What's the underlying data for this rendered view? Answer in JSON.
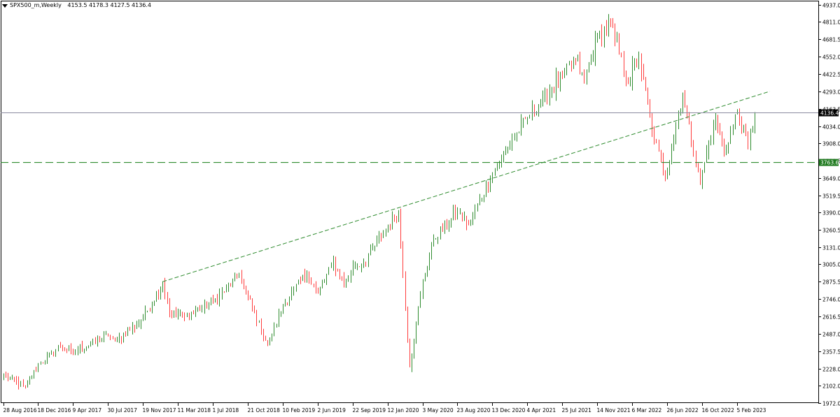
{
  "header": {
    "symbol": "SPX500_m,Weekly",
    "ohlc": "4153.5 4178.3 4127.5 4136.4"
  },
  "colors": {
    "bull": "#2e8b2e",
    "bear": "#ff3b3b",
    "trendline": "#2e8b2e",
    "price_line": "#8a8aa0",
    "axis": "#000000",
    "level_label_bg": "#1f7a1f"
  },
  "chart_data": {
    "type": "candlestick",
    "timeframe": "Weekly",
    "ylim": [
      1972.0,
      4937.0
    ],
    "y_ticks": [
      "4937.0",
      "4811.0",
      "4681.5",
      "4552.0",
      "4422.5",
      "4293.0",
      "4163.5",
      "4034.0",
      "3908.0",
      "3778.5",
      "3649.0",
      "3519.5",
      "3390.0",
      "3260.5",
      "3131.0",
      "3005.0",
      "2875.5",
      "2746.0",
      "2616.5",
      "2487.0",
      "2357.5",
      "2228.0",
      "2102.0",
      "1972.0"
    ],
    "x_ticks": [
      "28 Aug 2016",
      "18 Dec 2016",
      "9 Apr 2017",
      "30 Jul 2017",
      "19 Nov 2017",
      "11 Mar 2018",
      "1 Jul 2018",
      "21 Oct 2018",
      "10 Feb 2019",
      "2 Jun 2019",
      "22 Sep 2019",
      "12 Jan 2020",
      "3 May 2020",
      "23 Aug 2020",
      "13 Dec 2020",
      "4 Apr 2021",
      "25 Jul 2021",
      "14 Nov 2021",
      "6 Mar 2022",
      "26 Jun 2022",
      "16 Oct 2022",
      "5 Feb 2023"
    ],
    "x_start": "2016-08-28",
    "bars_per_tick": 16,
    "current_price": "4136.4",
    "horizontal_level": "3763.6",
    "anchors": [
      [
        "2016-08-28",
        2180
      ],
      [
        "2016-11-06",
        2085
      ],
      [
        "2016-12-18",
        2260
      ],
      [
        "2017-03-01",
        2390
      ],
      [
        "2017-04-09",
        2345
      ],
      [
        "2017-07-30",
        2475
      ],
      [
        "2017-08-20",
        2430
      ],
      [
        "2017-11-19",
        2600
      ],
      [
        "2018-01-21",
        2870
      ],
      [
        "2018-02-11",
        2640
      ],
      [
        "2018-04-01",
        2620
      ],
      [
        "2018-07-01",
        2720
      ],
      [
        "2018-09-20",
        2930
      ],
      [
        "2018-10-21",
        2760
      ],
      [
        "2018-12-23",
        2400
      ],
      [
        "2019-02-10",
        2700
      ],
      [
        "2019-04-28",
        2940
      ],
      [
        "2019-06-02",
        2790
      ],
      [
        "2019-07-21",
        3020
      ],
      [
        "2019-08-25",
        2850
      ],
      [
        "2019-09-22",
        2980
      ],
      [
        "2019-10-27",
        3020
      ],
      [
        "2020-01-12",
        3290
      ],
      [
        "2020-02-16",
        3390
      ],
      [
        "2020-03-22",
        2240
      ],
      [
        "2020-05-03",
        2880
      ],
      [
        "2020-06-07",
        3190
      ],
      [
        "2020-08-23",
        3390
      ],
      [
        "2020-09-27",
        3300
      ],
      [
        "2020-12-13",
        3680
      ],
      [
        "2021-02-14",
        3930
      ],
      [
        "2021-04-04",
        4100
      ],
      [
        "2021-07-25",
        4400
      ],
      [
        "2021-09-05",
        4530
      ],
      [
        "2021-10-03",
        4360
      ],
      [
        "2021-11-14",
        4700
      ],
      [
        "2021-12-26",
        4780
      ],
      [
        "2022-01-09",
        4700
      ],
      [
        "2022-02-20",
        4350
      ],
      [
        "2022-03-27",
        4550
      ],
      [
        "2022-05-08",
        4000
      ],
      [
        "2022-06-19",
        3650
      ],
      [
        "2022-08-14",
        4280
      ],
      [
        "2022-10-09",
        3600
      ],
      [
        "2022-10-16",
        3700
      ],
      [
        "2022-11-27",
        4080
      ],
      [
        "2022-12-25",
        3840
      ],
      [
        "2023-02-05",
        4140
      ],
      [
        "2023-03-12",
        3880
      ],
      [
        "2023-04-02",
        4136.4
      ]
    ],
    "trendline": {
      "from": [
        "2018-01-21",
        2875.5
      ],
      "to": [
        "2023-05-21",
        4293.0
      ]
    }
  }
}
